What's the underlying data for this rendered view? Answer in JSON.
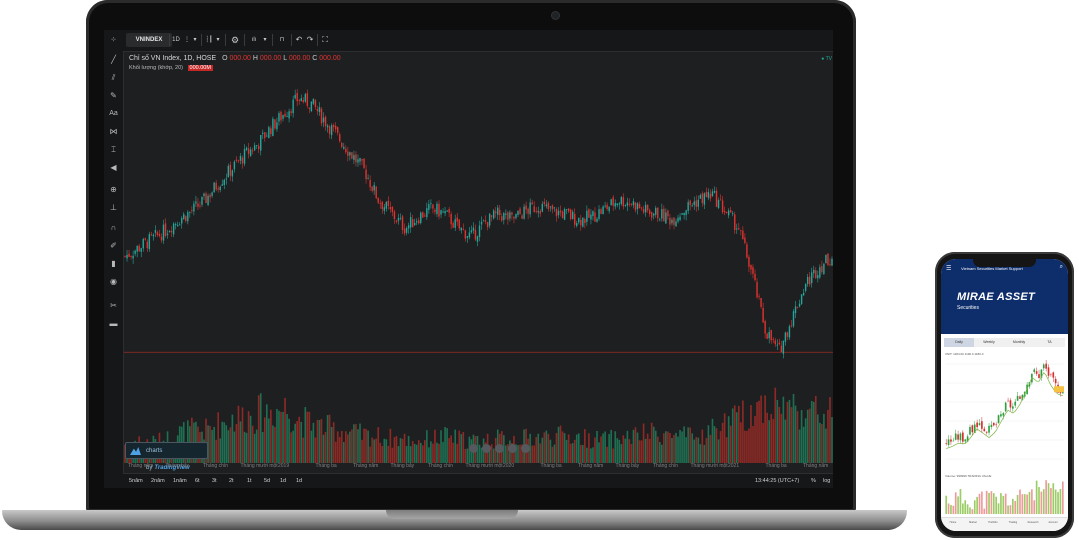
{
  "toolbar": {
    "symbol": "VNINDEX",
    "interval": "1D"
  },
  "legend": {
    "title": "Chỉ số VN Index, 1D, HOSE",
    "o_label": "O",
    "o_value": "000.00",
    "h_label": "H",
    "h_value": "000.00",
    "l_label": "L",
    "l_value": "000.00",
    "c_label": "C",
    "c_value": "000.00",
    "volume_label": "Khối lượng (khớp, 20)",
    "volume_value": "000.00M",
    "status": "● TV"
  },
  "x_axis_labels": [
    "Tháng năm",
    "Tháng bảy",
    "Tháng chín",
    "Tháng mười một",
    "2019",
    "Tháng ba",
    "Tháng năm",
    "Tháng bảy",
    "Tháng chín",
    "Tháng mười một",
    "2020",
    "Tháng ba",
    "Tháng năm",
    "Tháng bảy",
    "Tháng chín",
    "Tháng mười một",
    "2021",
    "Tháng ba",
    "Tháng năm"
  ],
  "timeframes": [
    "5năm",
    "2năm",
    "1năm",
    "6t",
    "3t",
    "2t",
    "1t",
    "5d",
    "1d",
    "1d"
  ],
  "time_display": "13:44:25 (UTC+7)",
  "time_pct": "%",
  "time_log": "log",
  "tv_logo": {
    "prefix": "charts by",
    "brand": "TradingView"
  },
  "colors": {
    "up": "#26a69a",
    "down": "#e0332f",
    "accent": "#2962ff",
    "brand_blue": "#0d2d6b"
  },
  "phone": {
    "header_text": "Vietnam Securities Market Support",
    "logo": "MIRAE ASSET",
    "logo_sub": "Securities",
    "tabs": [
      "Daily",
      "Weekly",
      "Monthly",
      "TA"
    ],
    "legend": "VNIT: 1184.00 1190.0 1180.0",
    "volume_legend": "Volume: 999999 TRADING VALUE",
    "bottom_nav": [
      "Home",
      "Market",
      "Portfolio",
      "Trading",
      "Research",
      "Account"
    ]
  },
  "chart_data": {
    "type": "candlestick",
    "series": [
      {
        "name": "Chỉ số VN Index",
        "values": [
          910,
          925,
          940,
          955,
          975,
          990,
          1010,
          1040,
          1065,
          1090,
          1110,
          1140,
          1165,
          1190,
          1180,
          1150,
          1120,
          1090,
          1060,
          1010,
          985,
          960,
          980,
          995,
          985,
          960,
          945,
          970,
          985,
          975,
          990,
          1000,
          990,
          985,
          975,
          980,
          995,
          1010,
          1005,
          990,
          985,
          975,
          995,
          1010,
          1020,
          990,
          960,
          880,
          780,
          740,
          800,
          860,
          890,
          910
        ]
      }
    ],
    "ylim": [
      650,
      1210
    ],
    "volume": [
      35,
      40,
      38,
      42,
      55,
      60,
      58,
      70,
      80,
      85,
      90,
      95,
      100,
      80,
      70,
      65,
      60,
      55,
      50,
      48,
      45,
      42,
      40,
      45,
      48,
      44,
      40,
      42,
      44,
      46,
      45,
      47,
      48,
      50,
      46,
      44,
      42,
      45,
      48,
      52,
      55,
      50,
      48,
      45,
      60,
      70,
      80,
      95,
      110,
      105,
      100,
      95,
      90,
      88
    ]
  }
}
